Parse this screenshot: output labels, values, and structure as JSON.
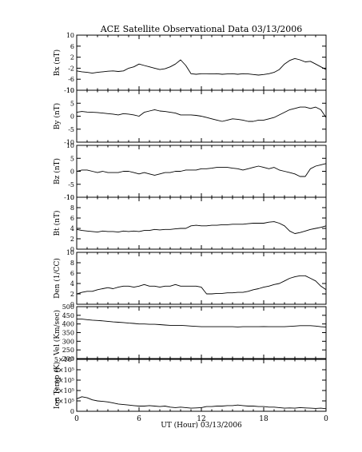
{
  "title": "ACE Satellite Observational Data   03/13/2006",
  "xlabel": "UT (Hour)   03/13/2006",
  "x_tick_labels": [
    "0",
    "6",
    "12",
    "18",
    "0"
  ],
  "chart_data": [
    {
      "type": "line",
      "ylabel": "Bx (nT)",
      "ylim": [
        -10,
        10
      ],
      "yticks": [
        "10",
        "6",
        "2",
        "-2",
        "-6",
        "-10"
      ],
      "xlim": [
        0,
        24
      ],
      "x": [
        0,
        0.5,
        1,
        1.5,
        2,
        2.5,
        3,
        3.5,
        4,
        4.5,
        5,
        5.5,
        6,
        6.5,
        7,
        7.5,
        8,
        8.5,
        9,
        9.5,
        10,
        10.5,
        11,
        11.5,
        12,
        12.5,
        13,
        13.5,
        14,
        14.5,
        15,
        15.5,
        16,
        16.5,
        17,
        17.5,
        18,
        18.5,
        19,
        19.5,
        20,
        20.5,
        21,
        21.5,
        22,
        22.5,
        23,
        23.5,
        24
      ],
      "values": [
        -3,
        -3.3,
        -3.5,
        -3.8,
        -3.5,
        -3.3,
        -3.1,
        -3.0,
        -3.2,
        -3.0,
        -2.0,
        -1.5,
        -0.5,
        -1.0,
        -1.5,
        -2.0,
        -2.5,
        -2.2,
        -1.5,
        -0.5,
        1.0,
        -1.0,
        -4.0,
        -4.2,
        -4.0,
        -4.0,
        -4.1,
        -4.0,
        -4.2,
        -4.1,
        -4.0,
        -4.2,
        -4.0,
        -4.1,
        -4.3,
        -4.5,
        -4.3,
        -4.0,
        -3.5,
        -2.5,
        -0.5,
        0.8,
        1.5,
        1.0,
        0.3,
        0.5,
        -0.5,
        -1.5,
        -2.5
      ]
    },
    {
      "type": "line",
      "ylabel": "By (nT)",
      "ylim": [
        -10,
        10
      ],
      "yticks": [
        "10",
        "5",
        "0",
        "-5",
        "-10"
      ],
      "xlim": [
        0,
        24
      ],
      "x": [
        0,
        0.5,
        1,
        1.5,
        2,
        2.5,
        3,
        3.5,
        4,
        4.5,
        5,
        5.5,
        6,
        6.5,
        7,
        7.5,
        8,
        8.5,
        9,
        9.5,
        10,
        10.5,
        11,
        11.5,
        12,
        12.5,
        13,
        13.5,
        14,
        14.5,
        15,
        15.5,
        16,
        16.5,
        17,
        17.5,
        18,
        18.5,
        19,
        19.5,
        20,
        20.5,
        21,
        21.5,
        22,
        22.5,
        23,
        23.5,
        24
      ],
      "values": [
        1.5,
        1.8,
        1.6,
        1.5,
        1.4,
        1.2,
        1.0,
        0.8,
        0.5,
        1.0,
        0.8,
        0.5,
        0.0,
        1.5,
        2.0,
        2.5,
        2.0,
        1.8,
        1.5,
        1.2,
        0.5,
        0.5,
        0.5,
        0.3,
        0.0,
        -0.5,
        -1.0,
        -1.5,
        -2.0,
        -1.5,
        -1.0,
        -1.2,
        -1.5,
        -2.0,
        -2.0,
        -1.5,
        -1.5,
        -1.0,
        -0.5,
        0.5,
        1.5,
        2.5,
        3.0,
        3.5,
        3.5,
        3.0,
        3.5,
        2.5,
        -0.5
      ]
    },
    {
      "type": "line",
      "ylabel": "Bz (nT)",
      "ylim": [
        -10,
        10
      ],
      "yticks": [
        "10",
        "5",
        "0",
        "-5",
        "-10"
      ],
      "xlim": [
        0,
        24
      ],
      "x": [
        0,
        0.5,
        1,
        1.5,
        2,
        2.5,
        3,
        3.5,
        4,
        4.5,
        5,
        5.5,
        6,
        6.5,
        7,
        7.5,
        8,
        8.5,
        9,
        9.5,
        10,
        10.5,
        11,
        11.5,
        12,
        12.5,
        13,
        13.5,
        14,
        14.5,
        15,
        15.5,
        16,
        16.5,
        17,
        17.5,
        18,
        18.5,
        19,
        19.5,
        20,
        20.5,
        21,
        21.5,
        22,
        22.5,
        23,
        23.5,
        24
      ],
      "values": [
        0.0,
        0.5,
        0.5,
        0.0,
        -0.5,
        0.0,
        -0.5,
        -0.5,
        -0.5,
        0.0,
        0.0,
        -0.5,
        -1.0,
        -0.5,
        -1.0,
        -1.5,
        -1.0,
        -0.5,
        -0.5,
        0.0,
        0.0,
        0.5,
        0.5,
        0.5,
        1.0,
        1.0,
        1.2,
        1.5,
        1.5,
        1.5,
        1.2,
        1.0,
        0.5,
        1.0,
        1.5,
        2.0,
        1.5,
        1.0,
        1.5,
        0.5,
        0.0,
        -0.5,
        -1.0,
        -2.0,
        -2.0,
        1.0,
        2.0,
        2.5,
        3.0
      ]
    },
    {
      "type": "line",
      "ylabel": "Bt (nT)",
      "ylim": [
        0,
        10
      ],
      "yticks": [
        "10",
        "8",
        "6",
        "4",
        "2",
        "0"
      ],
      "xlim": [
        0,
        24
      ],
      "x": [
        0,
        0.5,
        1,
        1.5,
        2,
        2.5,
        3,
        3.5,
        4,
        4.5,
        5,
        5.5,
        6,
        6.5,
        7,
        7.5,
        8,
        8.5,
        9,
        9.5,
        10,
        10.5,
        11,
        11.5,
        12,
        12.5,
        13,
        13.5,
        14,
        14.5,
        15,
        15.5,
        16,
        16.5,
        17,
        17.5,
        18,
        18.5,
        19,
        19.5,
        20,
        20.5,
        21,
        21.5,
        22,
        22.5,
        23,
        23.5,
        24
      ],
      "values": [
        3.8,
        3.6,
        3.5,
        3.4,
        3.3,
        3.5,
        3.4,
        3.4,
        3.3,
        3.5,
        3.4,
        3.5,
        3.4,
        3.6,
        3.6,
        3.8,
        3.7,
        3.8,
        3.8,
        3.9,
        4.0,
        4.0,
        4.5,
        4.6,
        4.5,
        4.5,
        4.6,
        4.6,
        4.7,
        4.7,
        4.8,
        4.8,
        4.8,
        4.9,
        5.0,
        5.0,
        5.0,
        5.2,
        5.3,
        5.0,
        4.5,
        3.5,
        3.0,
        3.2,
        3.5,
        3.8,
        4.0,
        4.2,
        4.5
      ]
    },
    {
      "type": "line",
      "ylabel": "Den (1/CC)",
      "ylim": [
        0,
        10
      ],
      "yticks": [
        "10",
        "8",
        "6",
        "4",
        "2",
        "0"
      ],
      "xlim": [
        0,
        24
      ],
      "x": [
        0,
        0.5,
        1,
        1.5,
        2,
        2.5,
        3,
        3.5,
        4,
        4.5,
        5,
        5.5,
        6,
        6.5,
        7,
        7.5,
        8,
        8.5,
        9,
        9.5,
        10,
        10.5,
        11,
        11.5,
        12,
        12.5,
        13,
        13.5,
        14,
        14.5,
        15,
        15.5,
        16,
        16.5,
        17,
        17.5,
        18,
        18.5,
        19,
        19.5,
        20,
        20.5,
        21,
        21.5,
        22,
        22.5,
        23,
        23.5,
        24
      ],
      "values": [
        2.0,
        2.3,
        2.5,
        2.5,
        2.8,
        3.0,
        3.2,
        3.0,
        3.3,
        3.5,
        3.5,
        3.3,
        3.5,
        3.8,
        3.5,
        3.5,
        3.3,
        3.5,
        3.5,
        3.8,
        3.5,
        3.5,
        3.5,
        3.5,
        3.3,
        2.0,
        2.0,
        2.1,
        2.1,
        2.2,
        2.2,
        2.3,
        2.3,
        2.5,
        2.8,
        3.0,
        3.3,
        3.5,
        3.8,
        4.0,
        4.5,
        5.0,
        5.3,
        5.5,
        5.5,
        5.0,
        4.5,
        3.5,
        2.8
      ]
    },
    {
      "type": "line",
      "ylabel": "Vel (Km/sec)",
      "ylim": [
        200,
        500
      ],
      "yticks": [
        "500",
        "450",
        "400",
        "350",
        "300",
        "250",
        "200"
      ],
      "xlim": [
        0,
        24
      ],
      "x": [
        0,
        0.5,
        1,
        1.5,
        2,
        2.5,
        3,
        3.5,
        4,
        4.5,
        5,
        5.5,
        6,
        6.5,
        7,
        7.5,
        8,
        8.5,
        9,
        9.5,
        10,
        10.5,
        11,
        11.5,
        12,
        12.5,
        13,
        13.5,
        14,
        14.5,
        15,
        15.5,
        16,
        16.5,
        17,
        17.5,
        18,
        18.5,
        19,
        19.5,
        20,
        20.5,
        21,
        21.5,
        22,
        22.5,
        23,
        23.5,
        24
      ],
      "values": [
        428,
        428,
        425,
        422,
        420,
        418,
        415,
        412,
        410,
        408,
        405,
        403,
        400,
        400,
        398,
        398,
        396,
        394,
        392,
        392,
        392,
        390,
        388,
        386,
        384,
        384,
        384,
        384,
        384,
        384,
        384,
        383,
        384,
        384,
        384,
        384,
        385,
        384,
        384,
        384,
        384,
        386,
        388,
        390,
        390,
        390,
        388,
        384,
        382
      ]
    },
    {
      "type": "line",
      "ylabel": "Ion Temp (K)",
      "ylim": [
        0,
        500000
      ],
      "yticks": [
        "5×10⁵",
        "4×10⁵",
        "3×10⁵",
        "2×10⁵",
        "1×10⁵",
        "0"
      ],
      "xlim": [
        0,
        24
      ],
      "x": [
        0,
        0.5,
        1,
        1.5,
        2,
        2.5,
        3,
        3.5,
        4,
        4.5,
        5,
        5.5,
        6,
        6.5,
        7,
        7.5,
        8,
        8.5,
        9,
        9.5,
        10,
        10.5,
        11,
        11.5,
        12,
        12.5,
        13,
        13.5,
        14,
        14.5,
        15,
        15.5,
        16,
        16.5,
        17,
        17.5,
        18,
        18.5,
        19,
        19.5,
        20,
        20.5,
        21,
        21.5,
        22,
        22.5,
        23,
        23.5,
        24
      ],
      "values": [
        120000,
        140000,
        130000,
        110000,
        100000,
        95000,
        90000,
        80000,
        70000,
        65000,
        60000,
        55000,
        50000,
        50000,
        55000,
        50000,
        45000,
        50000,
        40000,
        35000,
        40000,
        35000,
        30000,
        32000,
        35000,
        45000,
        45000,
        50000,
        50000,
        55000,
        55000,
        60000,
        55000,
        50000,
        50000,
        45000,
        45000,
        40000,
        40000,
        35000,
        30000,
        32000,
        30000,
        35000,
        32000,
        30000,
        28000,
        30000,
        25000
      ]
    }
  ]
}
